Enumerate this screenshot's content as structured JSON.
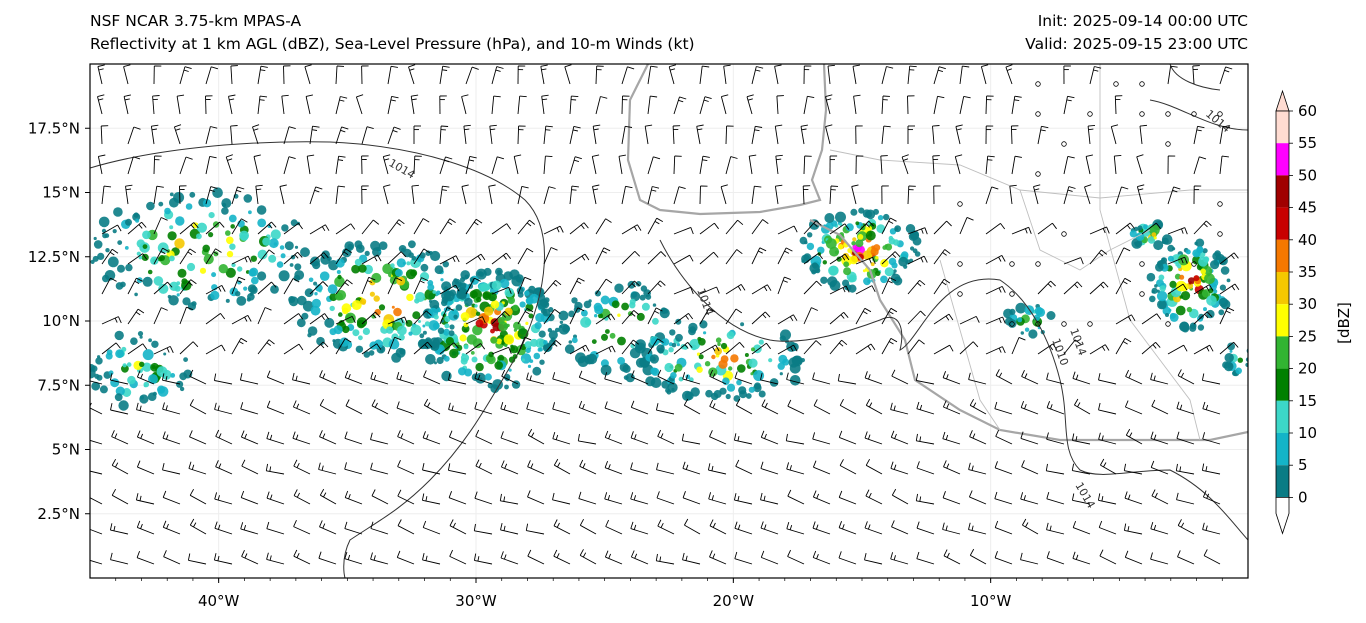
{
  "header": {
    "model": "NSF NCAR 3.75-km MPAS-A",
    "description": "Reflectivity at 1 km AGL (dBZ), Sea-Level Pressure (hPa), and 10-m Winds (kt)",
    "init": "Init: 2025-09-14 00:00 UTC",
    "valid": "Valid: 2025-09-15 23:00 UTC"
  },
  "map": {
    "lon_range": [
      -45,
      0
    ],
    "lat_range": [
      0,
      20
    ],
    "lat_ticks": [
      "2.5°N",
      "5°N",
      "7.5°N",
      "10°N",
      "12.5°N",
      "15°N",
      "17.5°N"
    ],
    "lat_tick_values": [
      2.5,
      5,
      7.5,
      10,
      12.5,
      15,
      17.5
    ],
    "lon_ticks": [
      "40°W",
      "30°W",
      "20°W",
      "10°W"
    ],
    "lon_tick_values": [
      -40,
      -30,
      -20,
      -10
    ],
    "isobar_labels": [
      "1014",
      "1014",
      "1014",
      "1014",
      "1010",
      "1014"
    ],
    "colors": {
      "coastline": "#a6a6a6",
      "isobar": "#333333",
      "barb": "#000000"
    }
  },
  "colorbar": {
    "label": "[dBZ]",
    "levels": [
      "0",
      "5",
      "10",
      "15",
      "20",
      "25",
      "30",
      "35",
      "40",
      "45",
      "50",
      "55",
      "60"
    ],
    "colors": [
      "#ffffff",
      "#0a7c85",
      "#14b4c8",
      "#3cd7c8",
      "#008000",
      "#32b432",
      "#ffff00",
      "#f5c800",
      "#f57800",
      "#c80000",
      "#a00000",
      "#ff00ff",
      "#ffdcd2"
    ]
  }
}
